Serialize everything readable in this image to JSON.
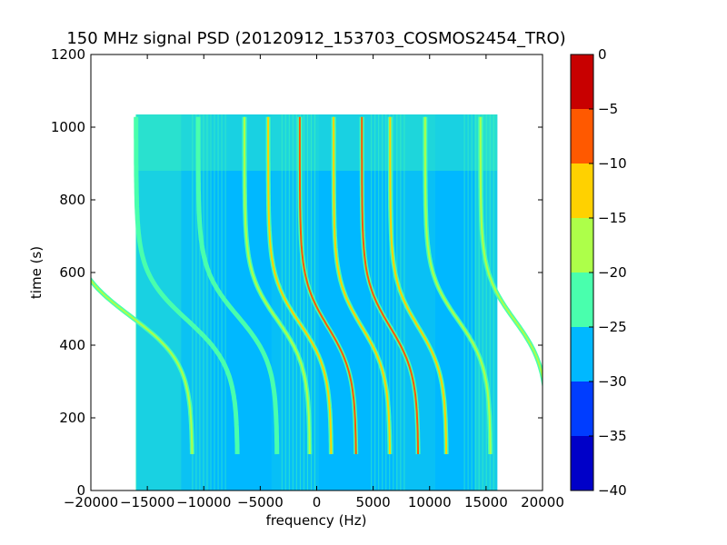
{
  "chart_data": {
    "type": "heatmap",
    "title": "150 MHz signal PSD (20120912_153703_COSMOS2454_TRO)",
    "xlabel": "frequency (Hz)",
    "ylabel": "time (s)",
    "xlim": [
      -20000,
      20000
    ],
    "ylim": [
      0,
      1200
    ],
    "x_ticks": [
      -20000,
      -15000,
      -10000,
      -5000,
      0,
      5000,
      10000,
      15000,
      20000
    ],
    "y_ticks": [
      0,
      200,
      400,
      600,
      800,
      1000,
      1200
    ],
    "data_extent": {
      "x": [
        -16000,
        16000
      ],
      "y": [
        0,
        1035
      ]
    },
    "background_level": -27,
    "colorbar": {
      "vmin": -40,
      "vmax": 0,
      "ticks": [
        0,
        -5,
        -10,
        -15,
        -20,
        -25,
        -30,
        -35,
        -40
      ],
      "levels": [
        {
          "range": [
            -40,
            -35
          ],
          "color": "#0000c8"
        },
        {
          "range": [
            -35,
            -30
          ],
          "color": "#003dff"
        },
        {
          "range": [
            -30,
            -25
          ],
          "color": "#00b8ff"
        },
        {
          "range": [
            -25,
            -20
          ],
          "color": "#49ffad"
        },
        {
          "range": [
            -20,
            -15
          ],
          "color": "#adff49"
        },
        {
          "range": [
            -15,
            -10
          ],
          "color": "#ffd100"
        },
        {
          "range": [
            -10,
            -5
          ],
          "color": "#ff5900"
        },
        {
          "range": [
            -5,
            0
          ],
          "color": "#c80000"
        }
      ]
    },
    "traces": [
      {
        "center_freq": -16500,
        "center_time": 480,
        "amplitude": 5500,
        "level": -18
      },
      {
        "center_freq": -11500,
        "center_time": 470,
        "amplitude": 4500,
        "level": -22
      },
      {
        "center_freq": -7000,
        "center_time": 480,
        "amplitude": 3500,
        "level": -22
      },
      {
        "center_freq": -3500,
        "center_time": 470,
        "amplitude": 2900,
        "level": -15
      },
      {
        "center_freq": -1500,
        "center_time": 460,
        "amplitude": 2800,
        "level": -12
      },
      {
        "center_freq": 1000,
        "center_time": 450,
        "amplitude": 2500,
        "level": -5
      },
      {
        "center_freq": 4000,
        "center_time": 450,
        "amplitude": 2500,
        "level": -10
      },
      {
        "center_freq": 6500,
        "center_time": 450,
        "amplitude": 2500,
        "level": -5
      },
      {
        "center_freq": 9000,
        "center_time": 450,
        "amplitude": 2500,
        "level": -10
      },
      {
        "center_freq": 12500,
        "center_time": 470,
        "amplitude": 2900,
        "level": -18
      },
      {
        "center_freq": 17500,
        "center_time": 470,
        "amplitude": 3000,
        "level": -16
      }
    ]
  }
}
